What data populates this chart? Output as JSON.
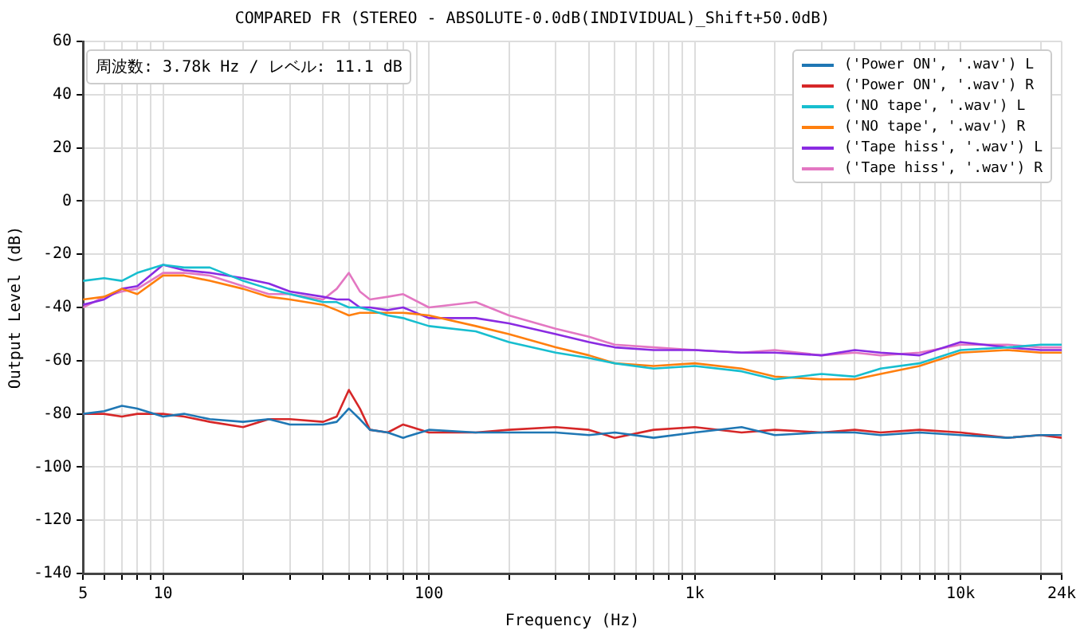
{
  "chart_data": {
    "type": "line",
    "title": "COMPARED FR (STEREO - ABSOLUTE-0.0dB(INDIVIDUAL)_Shift+50.0dB)",
    "xlabel": "Frequency (Hz)",
    "ylabel": "Output Level (dB)",
    "annotations": [
      "周波数: 3.78k Hz / レベル: 11.1 dB"
    ],
    "x": [
      5,
      6,
      7,
      8,
      10,
      12,
      15,
      20,
      25,
      30,
      40,
      45,
      50,
      55,
      60,
      70,
      80,
      100,
      150,
      200,
      300,
      400,
      500,
      700,
      1000,
      1500,
      2000,
      3000,
      4000,
      5000,
      7000,
      10000,
      15000,
      20000,
      24000
    ],
    "series": [
      {
        "name": "('Power ON', '.wav') L",
        "color": "#1f77b4",
        "values": [
          -80,
          -79,
          -77,
          -78,
          -81,
          -80,
          -82,
          -83,
          -82,
          -84,
          -84,
          -83,
          -78,
          -82,
          -86,
          -87,
          -89,
          -86,
          -87,
          -87,
          -87,
          -88,
          -87,
          -89,
          -87,
          -85,
          -88,
          -87,
          -87,
          -88,
          -87,
          -88,
          -89,
          -88,
          -88
        ]
      },
      {
        "name": "('Power ON', '.wav') R",
        "color": "#d62728",
        "values": [
          -80,
          -80,
          -81,
          -80,
          -80,
          -81,
          -83,
          -85,
          -82,
          -82,
          -83,
          -81,
          -71,
          -78,
          -86,
          -87,
          -84,
          -87,
          -87,
          -86,
          -85,
          -86,
          -89,
          -86,
          -85,
          -87,
          -86,
          -87,
          -86,
          -87,
          -86,
          -87,
          -89,
          -88,
          -89
        ]
      },
      {
        "name": "('NO tape', '.wav') L",
        "color": "#17becf",
        "values": [
          -30,
          -29,
          -30,
          -27,
          -24,
          -25,
          -25,
          -30,
          -33,
          -35,
          -38,
          -38,
          -40,
          -40,
          -41,
          -43,
          -44,
          -47,
          -49,
          -53,
          -57,
          -59,
          -61,
          -63,
          -62,
          -64,
          -67,
          -65,
          -66,
          -63,
          -61,
          -56,
          -55,
          -54,
          -54
        ]
      },
      {
        "name": "('NO tape', '.wav') R",
        "color": "#ff7f0e",
        "values": [
          -37,
          -36,
          -33,
          -35,
          -28,
          -28,
          -30,
          -33,
          -36,
          -37,
          -39,
          -41,
          -43,
          -42,
          -42,
          -42,
          -42,
          -43,
          -47,
          -50,
          -55,
          -58,
          -61,
          -62,
          -61,
          -63,
          -66,
          -67,
          -67,
          -65,
          -62,
          -57,
          -56,
          -57,
          -57
        ]
      },
      {
        "name": "('Tape hiss', '.wav') L",
        "color": "#8a2be2",
        "values": [
          -39,
          -37,
          -33,
          -32,
          -24,
          -26,
          -27,
          -29,
          -31,
          -34,
          -36,
          -37,
          -37,
          -40,
          -40,
          -41,
          -40,
          -44,
          -44,
          -46,
          -50,
          -53,
          -55,
          -56,
          -56,
          -57,
          -57,
          -58,
          -56,
          -57,
          -58,
          -53,
          -55,
          -56,
          -56
        ]
      },
      {
        "name": "('Tape hiss', '.wav') R",
        "color": "#e377c2",
        "values": [
          -40,
          -36,
          -34,
          -33,
          -27,
          -27,
          -28,
          -32,
          -35,
          -35,
          -37,
          -33,
          -27,
          -34,
          -37,
          -36,
          -35,
          -40,
          -38,
          -43,
          -48,
          -51,
          -54,
          -55,
          -56,
          -57,
          -56,
          -58,
          -57,
          -58,
          -57,
          -54,
          -54,
          -55,
          -55
        ]
      }
    ],
    "log": "x",
    "xlim": [
      5,
      24000
    ],
    "xticks": [
      5,
      {
        "value": 6,
        "label": null
      },
      {
        "value": 7,
        "label": null
      },
      {
        "value": 8,
        "label": null
      },
      {
        "value": 9,
        "label": null
      },
      10,
      {
        "value": 20,
        "label": null
      },
      {
        "value": 30,
        "label": null
      },
      {
        "value": 40,
        "label": null
      },
      {
        "value": 50,
        "label": null
      },
      {
        "value": 60,
        "label": null
      },
      {
        "value": 70,
        "label": null
      },
      {
        "value": 80,
        "label": null
      },
      {
        "value": 90,
        "label": null
      },
      100,
      {
        "value": 200,
        "label": null
      },
      {
        "value": 300,
        "label": null
      },
      {
        "value": 400,
        "label": null
      },
      {
        "value": 500,
        "label": null
      },
      {
        "value": 600,
        "label": null
      },
      {
        "value": 700,
        "label": null
      },
      {
        "value": 800,
        "label": null
      },
      {
        "value": 900,
        "label": null
      },
      {
        "value": 1000,
        "label": "1k"
      },
      {
        "value": 2000,
        "label": null
      },
      {
        "value": 3000,
        "label": null
      },
      {
        "value": 4000,
        "label": null
      },
      {
        "value": 5000,
        "label": null
      },
      {
        "value": 6000,
        "label": null
      },
      {
        "value": 7000,
        "label": null
      },
      {
        "value": 8000,
        "label": null
      },
      {
        "value": 9000,
        "label": null
      },
      {
        "value": 10000,
        "label": "10k"
      },
      {
        "value": 20000,
        "label": null
      },
      {
        "value": 24000,
        "label": "24k"
      }
    ],
    "ylim": [
      -140,
      60
    ],
    "yticks": [
      -140,
      -120,
      -100,
      -80,
      -60,
      -40,
      -20,
      0,
      20,
      40,
      60
    ],
    "grid": true,
    "legend": "top right",
    "marker": "none",
    "line_style": "solid"
  }
}
